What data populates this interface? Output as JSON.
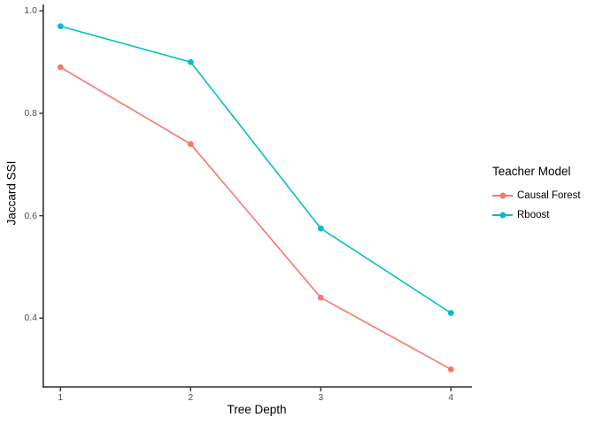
{
  "chart_data": {
    "type": "line",
    "title": "",
    "xlabel": "Tree Depth",
    "ylabel": "Jaccard SSI",
    "x": [
      1,
      2,
      3,
      4
    ],
    "x_tick_labels": [
      "1",
      "2",
      "3",
      "4"
    ],
    "y_ticks": [
      0.4,
      0.6,
      0.8,
      1.0
    ],
    "y_tick_labels": [
      "0.4",
      "0.6",
      "0.8",
      "1.0"
    ],
    "x_range": [
      0.862,
      4.161
    ],
    "y_range": [
      0.2656,
      1.0126
    ],
    "grid": false,
    "legend_position": "right",
    "legend_title": "Teacher Model",
    "series": [
      {
        "name": "Causal Forest",
        "color": "#F8766D",
        "values": [
          0.89,
          0.74,
          0.44,
          0.3
        ]
      },
      {
        "name": "Rboost",
        "color": "#00BFC4",
        "values": [
          0.97,
          0.9,
          0.575,
          0.41
        ]
      }
    ],
    "axis_color": "#2e2e2e",
    "tick_label_color": "#4d4d4d",
    "background": "#ffffff"
  }
}
